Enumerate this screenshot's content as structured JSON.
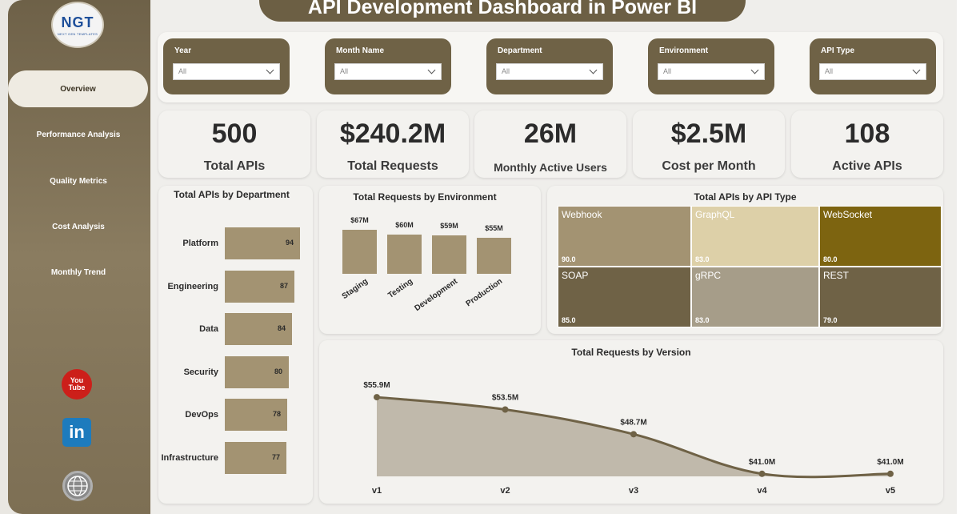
{
  "title": "API Development Dashboard in Power BI",
  "logo": {
    "text": "NGT",
    "subtitle": "NEXT GEN TEMPLATES"
  },
  "nav": [
    {
      "label": "Overview",
      "active": true
    },
    {
      "label": "Performance Analysis",
      "active": false
    },
    {
      "label": "Quality Metrics",
      "active": false
    },
    {
      "label": "Cost Analysis",
      "active": false
    },
    {
      "label": "Monthly Trend",
      "active": false
    }
  ],
  "social": {
    "youtube_top": "You",
    "youtube_bottom": "Tube",
    "linkedin": "in"
  },
  "filters": [
    {
      "label": "Year",
      "value": "All"
    },
    {
      "label": "Month Name",
      "value": "All"
    },
    {
      "label": "Department",
      "value": "All"
    },
    {
      "label": "Environment",
      "value": "All"
    },
    {
      "label": "API Type",
      "value": "All"
    }
  ],
  "kpis": [
    {
      "value": "500",
      "label": "Total APIs"
    },
    {
      "value": "$240.2M",
      "label": "Total Requests"
    },
    {
      "value": "26M",
      "label": "Monthly Active Users"
    },
    {
      "value": "$2.5M",
      "label": "Cost per Month"
    },
    {
      "value": "108",
      "label": "Active APIs"
    }
  ],
  "colors": {
    "accent": "#6f6246",
    "bar": "#a39372",
    "area": "#c0b9ab",
    "line": "#6f6246"
  },
  "chart_data": [
    {
      "type": "bar",
      "orientation": "horizontal",
      "title": "Total APIs by Department",
      "categories": [
        "Platform",
        "Engineering",
        "Data",
        "Security",
        "DevOps",
        "Infrastructure"
      ],
      "values": [
        94,
        87,
        84,
        80,
        78,
        77
      ],
      "labels": [
        "94",
        "87",
        "84",
        "80",
        "78",
        "77"
      ],
      "xlim": [
        0,
        100
      ]
    },
    {
      "type": "bar",
      "title": "Total Requests by Environment",
      "categories": [
        "Staging",
        "Testing",
        "Development",
        "Production"
      ],
      "values": [
        67,
        60,
        59,
        55
      ],
      "labels": [
        "$67M",
        "$60M",
        "$59M",
        "$55M"
      ],
      "unit": "$M"
    },
    {
      "type": "treemap",
      "title": "Total APIs by API Type",
      "items": [
        {
          "name": "Webhook",
          "value": 90,
          "label": "90.0",
          "color": "#a39372"
        },
        {
          "name": "GraphQL",
          "value": 83,
          "label": "83.0",
          "color": "#ddd0a8"
        },
        {
          "name": "WebSocket",
          "value": 80,
          "label": "80.0",
          "color": "#7d6410"
        },
        {
          "name": "SOAP",
          "value": 85,
          "label": "85.0",
          "color": "#6f6246"
        },
        {
          "name": "gRPC",
          "value": 83,
          "label": "83.0",
          "color": "#a69d89"
        },
        {
          "name": "REST",
          "value": 79,
          "label": "79.0",
          "color": "#6f6246"
        }
      ]
    },
    {
      "type": "area",
      "title": "Total Requests by Version",
      "categories": [
        "v1",
        "v2",
        "v3",
        "v4",
        "v5"
      ],
      "values": [
        55.9,
        53.5,
        48.7,
        41.0,
        41.0
      ],
      "labels": [
        "$55.9M",
        "$53.5M",
        "$48.7M",
        "$41.0M",
        "$41.0M"
      ],
      "ylim": [
        40.5,
        57
      ]
    }
  ]
}
